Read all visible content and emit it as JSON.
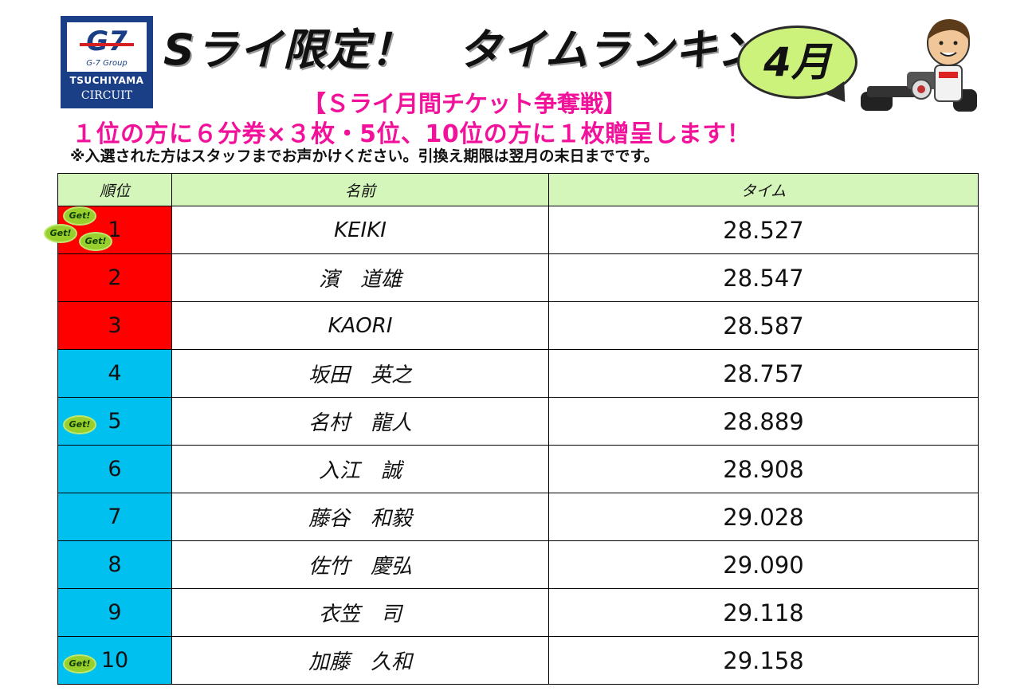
{
  "logo": {
    "brand": "G7",
    "group": "G-7 Group",
    "name": "TSUCHIYAMA",
    "sub": "CIRCUIT"
  },
  "title": "Sライ限定！　タイムランキング",
  "month": "4月",
  "subtitle": "【Ｓライ月間チケット争奪戦】",
  "prize": "１位の方に６分券×３枚・5位、10位の方に１枚贈呈します！",
  "note": "※入選された方はスタッフまでお声かけください。引換え期限は翌月の末日までです。",
  "table": {
    "headers": [
      "順位",
      "名前",
      "タイム"
    ],
    "rows": [
      {
        "rank": "1",
        "name": "KEIKI",
        "time": "28.527",
        "color": "#ff0000",
        "badges": [
          "Get!",
          "Get!",
          "Get!"
        ]
      },
      {
        "rank": "2",
        "name": "濱　道雄",
        "time": "28.547",
        "color": "#ff0000",
        "badges": []
      },
      {
        "rank": "3",
        "name": "KAORI",
        "time": "28.587",
        "color": "#ff0000",
        "badges": []
      },
      {
        "rank": "4",
        "name": "坂田　英之",
        "time": "28.757",
        "color": "#00c0f0",
        "badges": []
      },
      {
        "rank": "5",
        "name": "名村　龍人",
        "time": "28.889",
        "color": "#00c0f0",
        "badges": [
          "Get!"
        ]
      },
      {
        "rank": "6",
        "name": "入江　誠",
        "time": "28.908",
        "color": "#00c0f0",
        "badges": []
      },
      {
        "rank": "7",
        "name": "藤谷　和毅",
        "time": "29.028",
        "color": "#00c0f0",
        "badges": []
      },
      {
        "rank": "8",
        "name": "佐竹　慶弘",
        "time": "29.090",
        "color": "#00c0f0",
        "badges": []
      },
      {
        "rank": "9",
        "name": "衣笠　司",
        "time": "29.118",
        "color": "#00c0f0",
        "badges": []
      },
      {
        "rank": "10",
        "name": "加藤　久和",
        "time": "29.158",
        "color": "#00c0f0",
        "badges": [
          "Get!"
        ]
      }
    ]
  }
}
